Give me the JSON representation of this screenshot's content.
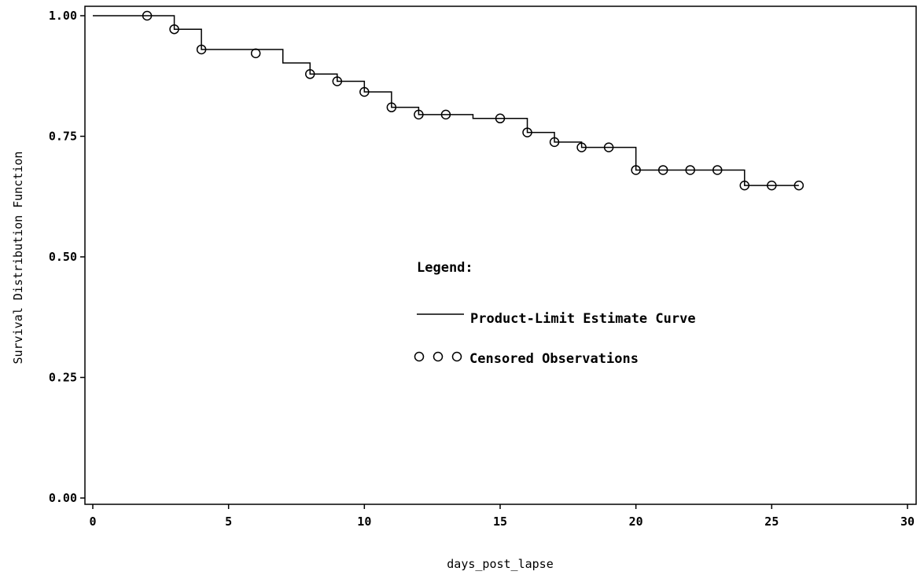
{
  "chart_data": {
    "type": "line",
    "title": "",
    "xlabel": "days_post_lapse",
    "ylabel": "Survival Distribution Function",
    "xlim": [
      0,
      30
    ],
    "ylim": [
      0.0,
      1.0
    ],
    "x_ticks": [
      0,
      5,
      10,
      15,
      20,
      25,
      30
    ],
    "x_tick_labels": [
      "0",
      "5",
      "10",
      "15",
      "20",
      "25",
      "30"
    ],
    "y_ticks": [
      0.0,
      0.25,
      0.5,
      0.75,
      1.0
    ],
    "y_tick_labels": [
      "0.00",
      "0.25",
      "0.50",
      "0.75",
      "1.00"
    ],
    "grid": false,
    "legend": {
      "title": "Legend:",
      "position": "center",
      "entries": [
        {
          "label": "Product-Limit Estimate Curve",
          "style": "line"
        },
        {
          "label": "Censored Observations",
          "style": "circle-marker"
        }
      ]
    },
    "series": [
      {
        "name": "Product-Limit Estimate Curve",
        "kind": "step",
        "x": [
          0,
          3,
          4,
          7,
          8,
          9,
          10,
          11,
          12,
          14,
          16,
          17,
          18,
          20,
          24,
          26
        ],
        "y": [
          1.0,
          0.972,
          0.93,
          0.902,
          0.879,
          0.864,
          0.842,
          0.81,
          0.795,
          0.787,
          0.758,
          0.738,
          0.727,
          0.68,
          0.648,
          0.648
        ]
      },
      {
        "name": "Censored Observations",
        "kind": "scatter",
        "marker": "circle",
        "x": [
          2,
          3,
          4,
          6,
          8,
          9,
          10,
          11,
          12,
          13,
          15,
          16,
          17,
          18,
          19,
          20,
          21,
          22,
          23,
          24,
          25,
          26
        ],
        "y": [
          1.0,
          0.972,
          0.93,
          0.922,
          0.879,
          0.864,
          0.842,
          0.81,
          0.795,
          0.795,
          0.787,
          0.758,
          0.738,
          0.727,
          0.727,
          0.68,
          0.68,
          0.68,
          0.68,
          0.648,
          0.648,
          0.648
        ]
      }
    ],
    "colors": {
      "line": "#000000",
      "marker": "#000000",
      "background": "#ffffff"
    }
  }
}
